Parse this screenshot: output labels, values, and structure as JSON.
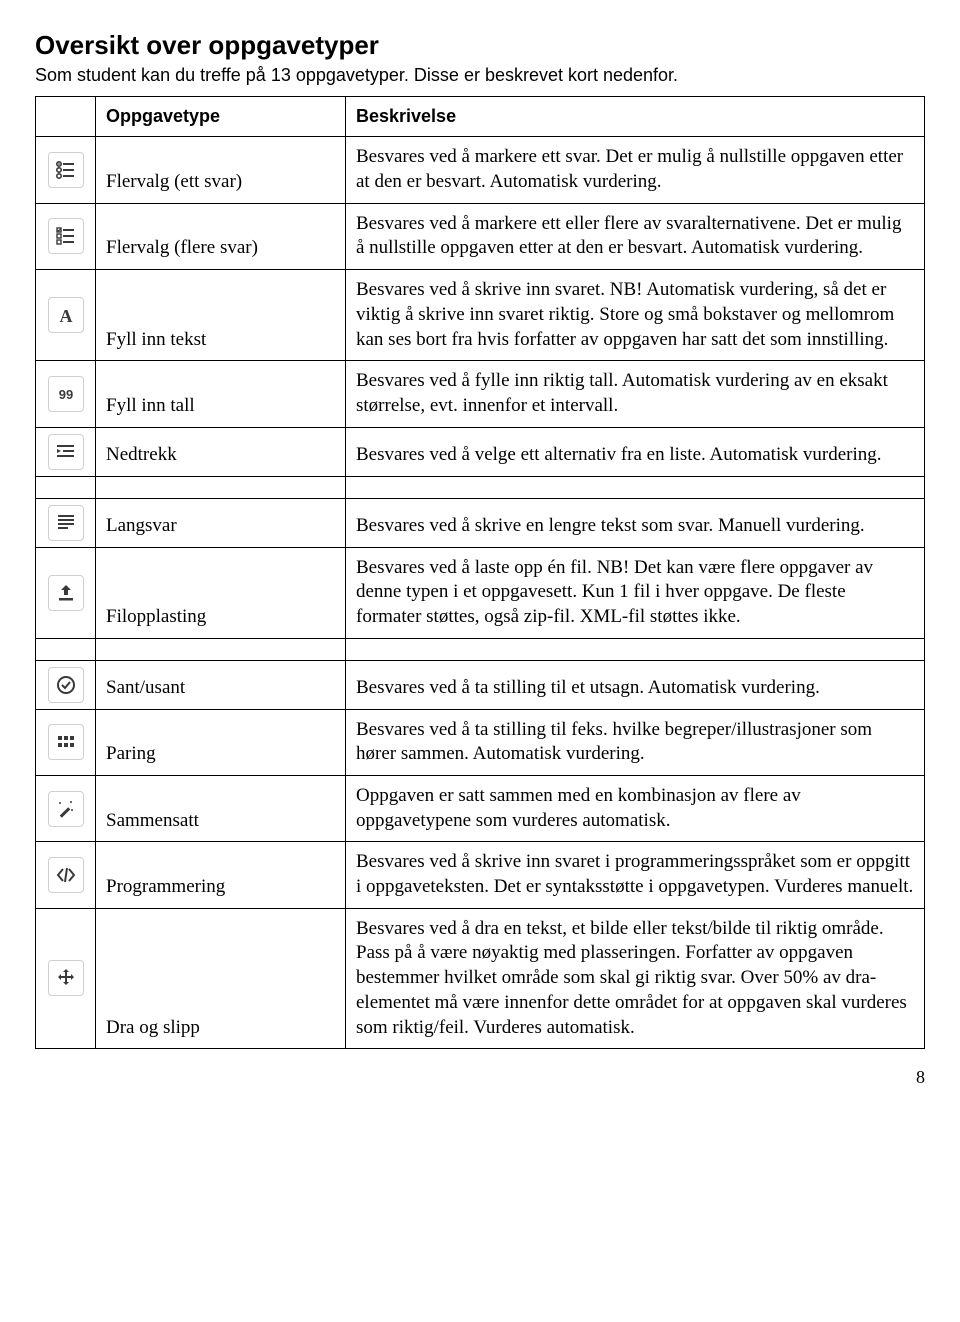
{
  "title": "Oversikt over oppgavetyper",
  "intro": "Som student kan du treffe på 13 oppgavetyper. Disse er beskrevet kort nedenfor.",
  "header": {
    "type": "Oppgavetype",
    "desc": "Beskrivelse"
  },
  "rows": [
    {
      "icon": "list-radio",
      "type": "Flervalg (ett svar)",
      "desc": "Besvares ved å markere ett svar. Det er mulig å nullstille oppgaven etter at den er besvart. Automatisk vurdering."
    },
    {
      "icon": "list-check",
      "type": "Flervalg (flere svar)",
      "desc": "Besvares ved å markere ett eller flere av svaralternativene. Det er mulig å nullstille oppgaven etter at den er besvart. Automatisk vurdering."
    },
    {
      "icon": "letter-a",
      "type": "Fyll inn tekst",
      "desc": "Besvares ved å skrive inn svaret. NB! Automatisk vurdering, så det er viktig å skrive inn svaret riktig. Store og små bokstaver og mellomrom kan ses bort fra hvis forfatter av oppgaven har satt det som innstilling."
    },
    {
      "icon": "number-99",
      "type": "Fyll inn tall",
      "desc": "Besvares ved å fylle inn riktig tall. Automatisk vurdering av en eksakt størrelse, evt. innenfor et intervall."
    },
    {
      "icon": "indent",
      "type": "Nedtrekk",
      "desc": "Besvares ved å velge ett alternativ fra en liste. Automatisk vurdering."
    },
    {
      "icon": "align-lines",
      "type": "Langsvar",
      "desc": "Besvares ved å skrive en lengre tekst som svar. Manuell vurdering."
    },
    {
      "icon": "upload",
      "type": "Filopplasting",
      "desc": "Besvares ved å laste opp én fil. NB! Det kan være flere oppgaver av denne typen i et oppgavesett. Kun 1 fil i hver oppgave. De fleste formater støttes, også zip-fil. XML-fil støttes ikke."
    },
    {
      "icon": "check-circle",
      "type": "Sant/usant",
      "desc": "Besvares ved å ta stilling til et utsagn. Automatisk vurdering."
    },
    {
      "icon": "grid",
      "type": "Paring",
      "desc": "Besvares ved å ta stilling til feks. hvilke begreper/illustrasjoner som hører sammen. Automatisk vurdering."
    },
    {
      "icon": "magic",
      "type": "Sammensatt",
      "desc": "Oppgaven er satt sammen med en kombinasjon av flere av oppgavetypene som vurderes automatisk."
    },
    {
      "icon": "code",
      "type": "Programmering",
      "desc": "Besvares ved å skrive inn svaret i programmeringsspråket som er oppgitt i oppgaveteksten. Det er syntaksstøtte i oppgavetypen. Vurderes manuelt."
    },
    {
      "icon": "move",
      "type": "Dra og slipp",
      "desc": "Besvares ved å dra en tekst, et bilde eller tekst/bilde til riktig område. Pass på å være nøyaktig med plasseringen. Forfatter av oppgaven bestemmer hvilket område som skal gi riktig svar. Over 50% av dra-elementet må være innenfor dette området for at oppgaven skal vurderes som riktig/feil. Vurderes automatisk."
    }
  ],
  "spacer_after": [
    4,
    6
  ],
  "page_number": "8",
  "colors": {
    "border": "#000000",
    "icon_border": "#cfcfcf",
    "icon_fg": "#3a3a3a",
    "bg": "#ffffff"
  },
  "fonts": {
    "heading": "Arial",
    "body_serif": "Times New Roman"
  }
}
